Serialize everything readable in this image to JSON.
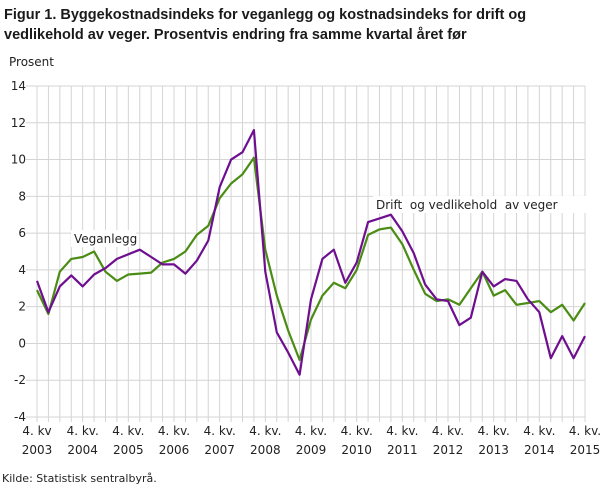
{
  "chart_data": {
    "type": "line",
    "title": "Figur 1. Byggekostnadsindeks for veganlegg og kostnadsindeks for drift og vedlikehold av veger. Prosentvis endring fra samme kvartal året før",
    "ylabel": "Prosent",
    "xlabel": "",
    "ylim": [
      -4,
      14
    ],
    "yticks": [
      "-4",
      "-2",
      "0",
      "2",
      "4",
      "6",
      "8",
      "10",
      "12",
      "14"
    ],
    "grid": true,
    "xtick_labels": [
      {
        "q": "4. kv",
        "year": "2003"
      },
      {
        "q": "4. kv.",
        "year": "2004"
      },
      {
        "q": "4. kv.",
        "year": "2005"
      },
      {
        "q": "4. kv.",
        "year": "2006"
      },
      {
        "q": "4. kv.",
        "year": "2007"
      },
      {
        "q": "4. kv.",
        "year": "2008"
      },
      {
        "q": "4. kv.",
        "year": "2009"
      },
      {
        "q": "4. kv.",
        "year": "2010"
      },
      {
        "q": "4. kv.",
        "year": "2011"
      },
      {
        "q": "4. kv.",
        "year": "2012"
      },
      {
        "q": "4. kv.",
        "year": "2013"
      },
      {
        "q": "4. kv.",
        "year": "2014"
      },
      {
        "q": "4. kv.",
        "year": "2015"
      }
    ],
    "x_range": [
      "2003K4",
      "2015K4"
    ],
    "series": [
      {
        "name": "Veganlegg",
        "color": "#4a8c14",
        "values": [
          2.9,
          1.6,
          3.9,
          4.6,
          4.7,
          5.0,
          3.9,
          3.4,
          3.75,
          3.8,
          3.85,
          4.4,
          4.6,
          5.0,
          5.9,
          6.4,
          7.9,
          8.7,
          9.2,
          10.1,
          5.1,
          2.6,
          0.7,
          -0.9,
          1.3,
          2.6,
          3.3,
          3.0,
          4.0,
          5.9,
          6.2,
          6.3,
          5.4,
          4.0,
          2.7,
          2.3,
          2.4,
          2.1,
          3.0,
          3.9,
          2.6,
          2.9,
          2.1,
          2.2,
          2.3,
          1.7,
          2.1,
          1.25,
          2.2
        ]
      },
      {
        "name": "Drift  og vedlikehold  av veger",
        "color": "#6e0f8f",
        "values": [
          3.4,
          1.7,
          3.1,
          3.7,
          3.1,
          3.75,
          4.1,
          4.6,
          4.85,
          5.1,
          4.7,
          4.3,
          4.3,
          3.8,
          4.5,
          5.6,
          8.5,
          10.0,
          10.4,
          11.6,
          3.9,
          0.6,
          -0.5,
          -1.7,
          2.4,
          4.6,
          5.1,
          3.3,
          4.4,
          6.6,
          6.8,
          7.0,
          6.1,
          4.9,
          3.2,
          2.4,
          2.3,
          1.0,
          1.4,
          3.9,
          3.1,
          3.5,
          3.4,
          2.4,
          1.7,
          -0.8,
          0.4,
          -0.8,
          0.4
        ]
      }
    ]
  },
  "source": "Kilde: Statistisk sentralbyrå."
}
